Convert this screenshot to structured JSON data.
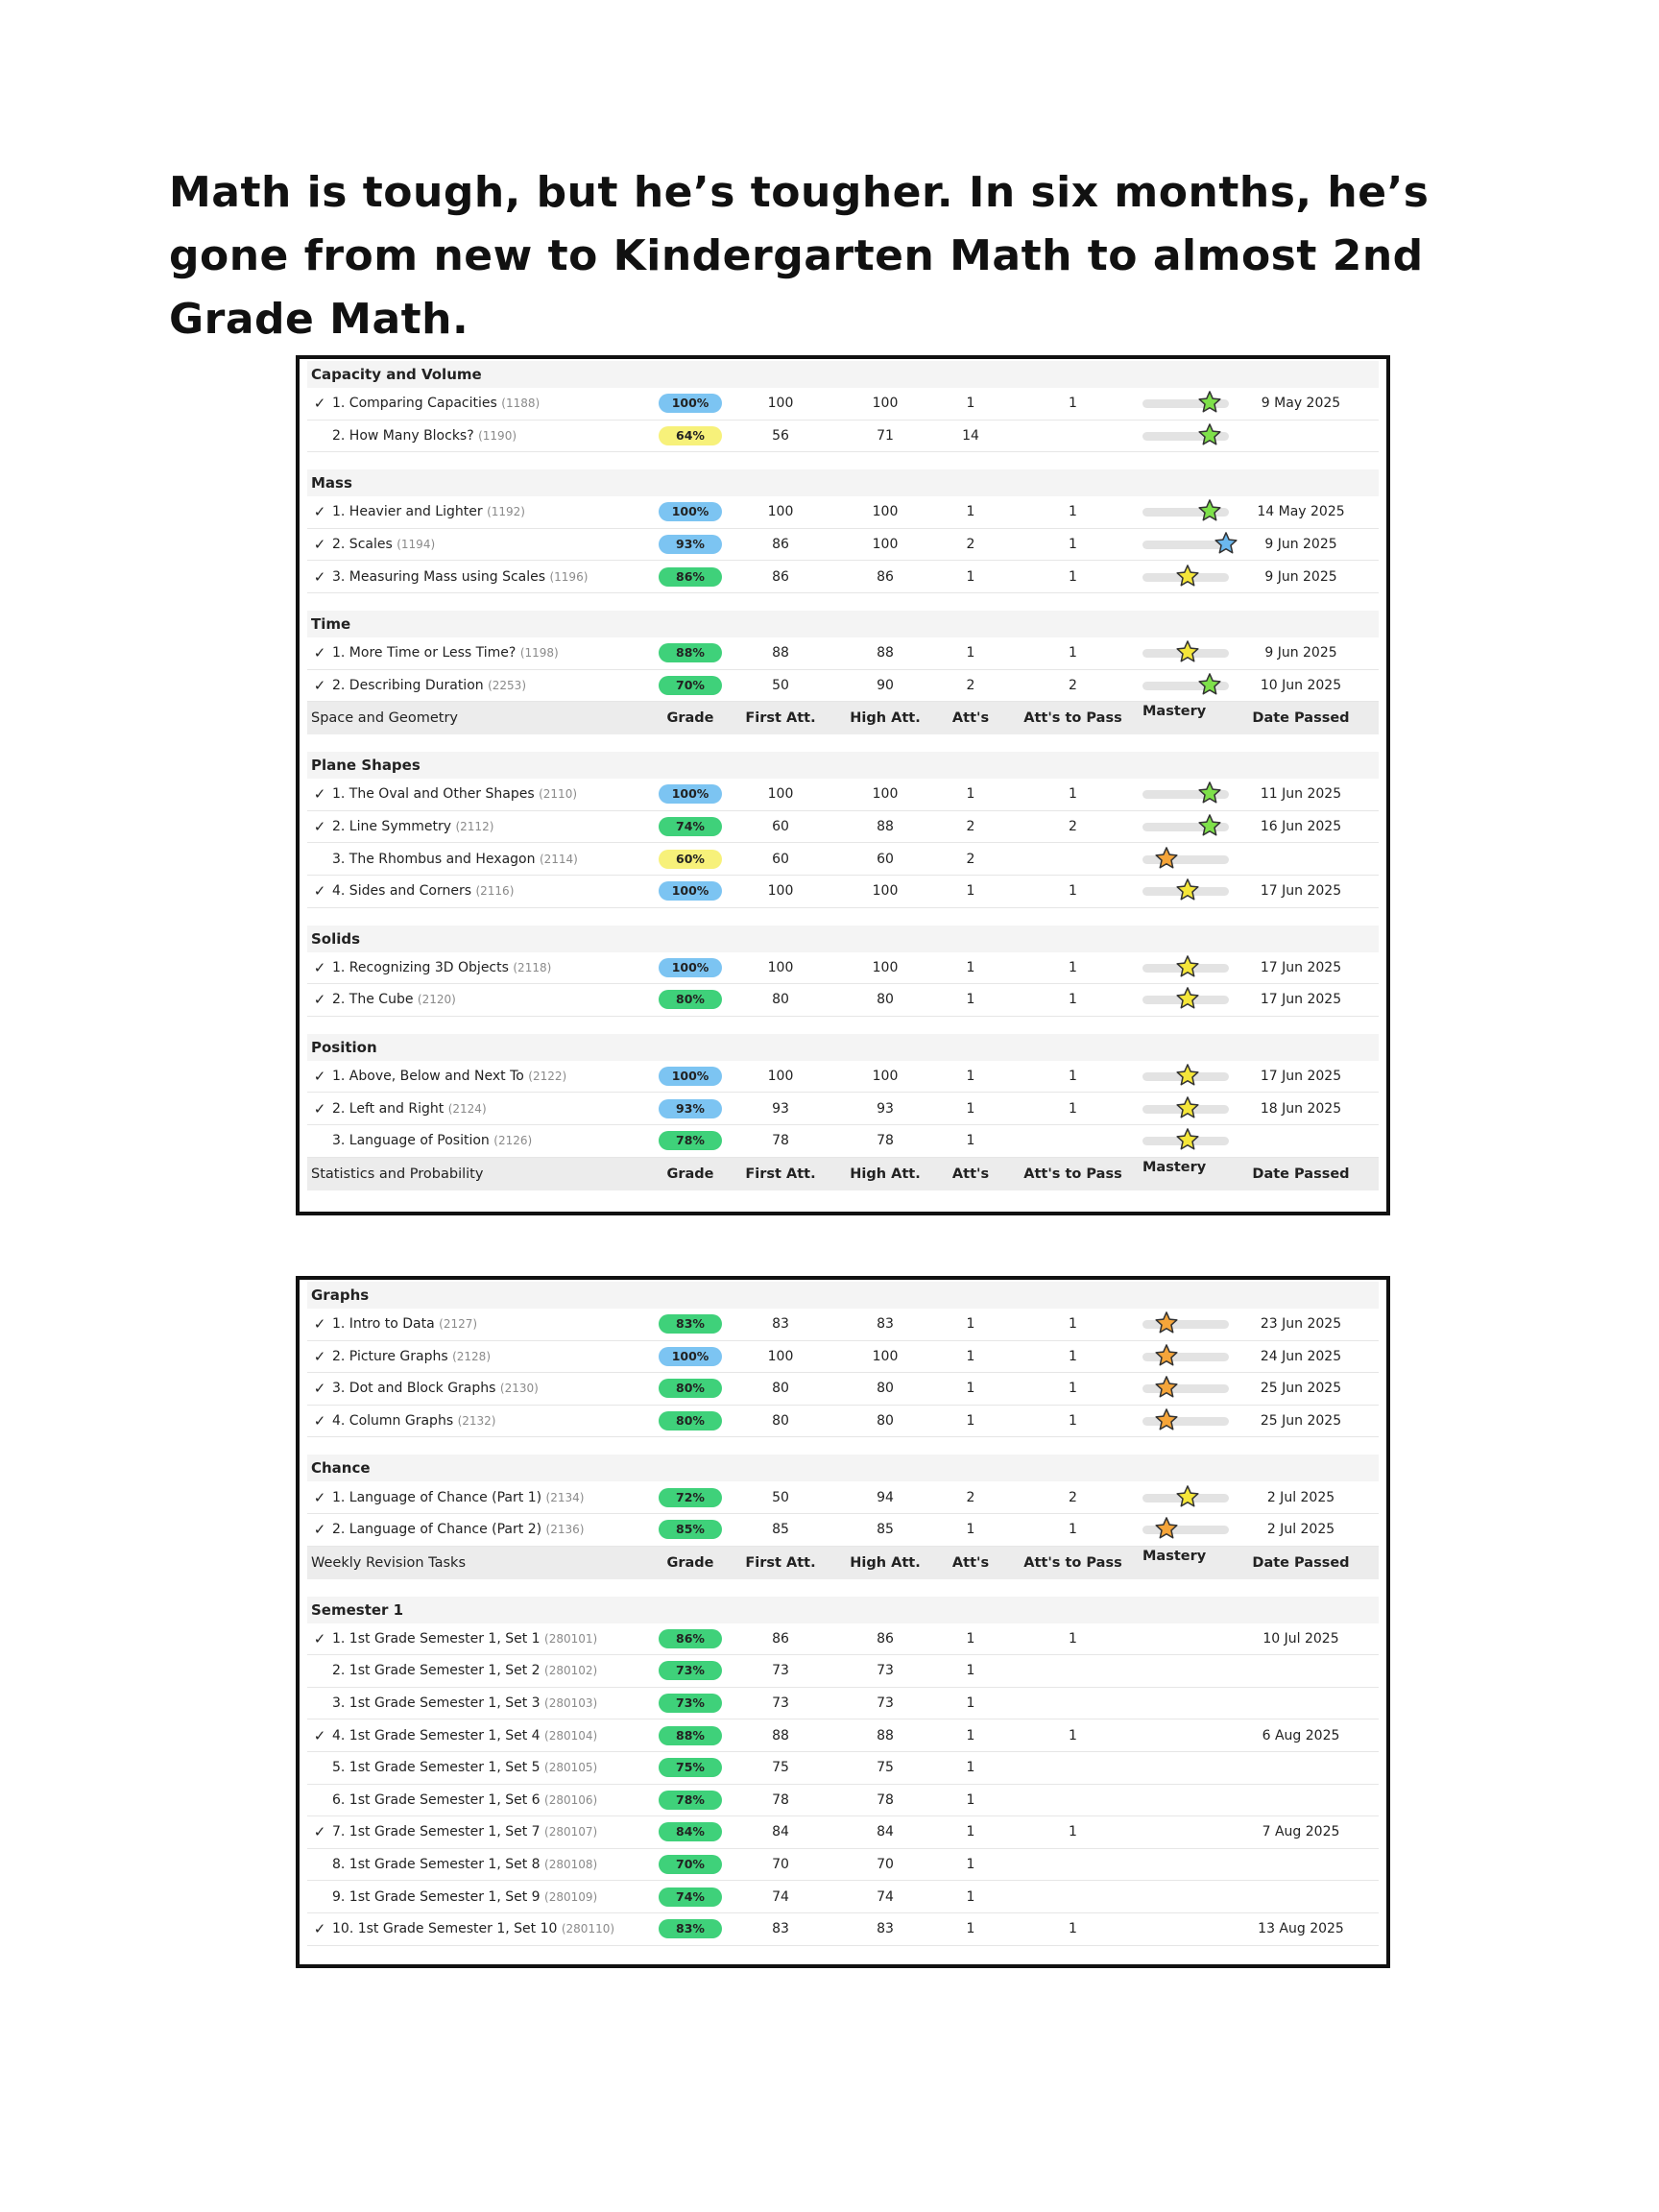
{
  "headline": "Math is tough, but he’s tougher. In six months, he’s gone from new to Kindergarten Math to almost 2nd Grade Math.",
  "colors": {
    "blue_badge": "#7cc4f2",
    "green_badge": "#3fd17a",
    "yellow_badge": "#f7f17a",
    "star_green": "#7ee04a",
    "star_blue": "#6bb8ee",
    "star_yellow": "#f5e63a",
    "star_orange": "#f5a53a"
  },
  "column_headers": {
    "grade": "Grade",
    "first": "First Att.",
    "high": "High Att.",
    "atts": "Att's",
    "pass": "Att's to Pass",
    "mastery": "Mastery",
    "date": "Date Passed"
  },
  "panel1": [
    {
      "kind": "section",
      "title": "Capacity and Volume"
    },
    {
      "kind": "row",
      "check": true,
      "name": "1. Comparing Capacities",
      "code": "(1188)",
      "grade": "100%",
      "badge": "blue",
      "first": "100",
      "high": "100",
      "atts": "1",
      "pass": "1",
      "mastery": 0.78,
      "star": "green",
      "date": "9 May 2025"
    },
    {
      "kind": "row",
      "check": false,
      "name": "2. How Many Blocks?",
      "code": "(1190)",
      "grade": "64%",
      "badge": "yellow",
      "first": "56",
      "high": "71",
      "atts": "14",
      "pass": "",
      "mastery": 0.78,
      "star": "green",
      "date": ""
    },
    {
      "kind": "gap"
    },
    {
      "kind": "section",
      "title": "Mass"
    },
    {
      "kind": "row",
      "check": true,
      "name": "1. Heavier and Lighter",
      "code": "(1192)",
      "grade": "100%",
      "badge": "blue",
      "first": "100",
      "high": "100",
      "atts": "1",
      "pass": "1",
      "mastery": 0.78,
      "star": "green",
      "date": "14 May 2025"
    },
    {
      "kind": "row",
      "check": true,
      "name": "2. Scales",
      "code": "(1194)",
      "grade": "93%",
      "badge": "blue",
      "first": "86",
      "high": "100",
      "atts": "2",
      "pass": "1",
      "mastery": 0.97,
      "star": "blue",
      "date": "9 Jun 2025"
    },
    {
      "kind": "row",
      "check": true,
      "name": "3. Measuring Mass using Scales",
      "code": "(1196)",
      "grade": "86%",
      "badge": "green",
      "first": "86",
      "high": "86",
      "atts": "1",
      "pass": "1",
      "mastery": 0.52,
      "star": "yellow",
      "date": "9 Jun 2025"
    },
    {
      "kind": "gap"
    },
    {
      "kind": "section",
      "title": "Time"
    },
    {
      "kind": "row",
      "check": true,
      "name": "1. More Time or Less Time?",
      "code": "(1198)",
      "grade": "88%",
      "badge": "green",
      "first": "88",
      "high": "88",
      "atts": "1",
      "pass": "1",
      "mastery": 0.52,
      "star": "yellow",
      "date": "9 Jun 2025"
    },
    {
      "kind": "row",
      "check": true,
      "name": "2. Describing Duration",
      "code": "(2253)",
      "grade": "70%",
      "badge": "green",
      "first": "50",
      "high": "90",
      "atts": "2",
      "pass": "2",
      "mastery": 0.78,
      "star": "green",
      "date": "10 Jun 2025"
    },
    {
      "kind": "header",
      "title": "Space and Geometry"
    },
    {
      "kind": "gap"
    },
    {
      "kind": "section",
      "title": "Plane Shapes"
    },
    {
      "kind": "row",
      "check": true,
      "name": "1. The Oval and Other Shapes",
      "code": "(2110)",
      "grade": "100%",
      "badge": "blue",
      "first": "100",
      "high": "100",
      "atts": "1",
      "pass": "1",
      "mastery": 0.78,
      "star": "green",
      "date": "11 Jun 2025"
    },
    {
      "kind": "row",
      "check": true,
      "name": "2. Line Symmetry",
      "code": "(2112)",
      "grade": "74%",
      "badge": "green",
      "first": "60",
      "high": "88",
      "atts": "2",
      "pass": "2",
      "mastery": 0.78,
      "star": "green",
      "date": "16 Jun 2025"
    },
    {
      "kind": "row",
      "check": false,
      "name": "3. The Rhombus and Hexagon",
      "code": "(2114)",
      "grade": "60%",
      "badge": "yellow",
      "first": "60",
      "high": "60",
      "atts": "2",
      "pass": "",
      "mastery": 0.28,
      "star": "orange",
      "date": ""
    },
    {
      "kind": "row",
      "check": true,
      "name": "4. Sides and Corners",
      "code": "(2116)",
      "grade": "100%",
      "badge": "blue",
      "first": "100",
      "high": "100",
      "atts": "1",
      "pass": "1",
      "mastery": 0.52,
      "star": "yellow",
      "date": "17 Jun 2025"
    },
    {
      "kind": "gap"
    },
    {
      "kind": "section",
      "title": "Solids"
    },
    {
      "kind": "row",
      "check": true,
      "name": "1. Recognizing 3D Objects",
      "code": "(2118)",
      "grade": "100%",
      "badge": "blue",
      "first": "100",
      "high": "100",
      "atts": "1",
      "pass": "1",
      "mastery": 0.52,
      "star": "yellow",
      "date": "17 Jun 2025"
    },
    {
      "kind": "row",
      "check": true,
      "name": "2. The Cube",
      "code": "(2120)",
      "grade": "80%",
      "badge": "green",
      "first": "80",
      "high": "80",
      "atts": "1",
      "pass": "1",
      "mastery": 0.52,
      "star": "yellow",
      "date": "17 Jun 2025"
    },
    {
      "kind": "gap"
    },
    {
      "kind": "section",
      "title": "Position"
    },
    {
      "kind": "row",
      "check": true,
      "name": "1. Above, Below and Next To",
      "code": "(2122)",
      "grade": "100%",
      "badge": "blue",
      "first": "100",
      "high": "100",
      "atts": "1",
      "pass": "1",
      "mastery": 0.52,
      "star": "yellow",
      "date": "17 Jun 2025"
    },
    {
      "kind": "row",
      "check": true,
      "name": "2. Left and Right",
      "code": "(2124)",
      "grade": "93%",
      "badge": "blue",
      "first": "93",
      "high": "93",
      "atts": "1",
      "pass": "1",
      "mastery": 0.52,
      "star": "yellow",
      "date": "18 Jun 2025"
    },
    {
      "kind": "row",
      "check": false,
      "name": "3. Language of Position",
      "code": "(2126)",
      "grade": "78%",
      "badge": "green",
      "first": "78",
      "high": "78",
      "atts": "1",
      "pass": "",
      "mastery": 0.52,
      "star": "yellow",
      "date": ""
    },
    {
      "kind": "header",
      "title": "Statistics and Probability"
    }
  ],
  "panel2": [
    {
      "kind": "section",
      "title": "Graphs"
    },
    {
      "kind": "row",
      "check": true,
      "name": "1. Intro to Data",
      "code": "(2127)",
      "grade": "83%",
      "badge": "green",
      "first": "83",
      "high": "83",
      "atts": "1",
      "pass": "1",
      "mastery": 0.28,
      "star": "orange",
      "date": "23 Jun 2025"
    },
    {
      "kind": "row",
      "check": true,
      "name": "2. Picture Graphs",
      "code": "(2128)",
      "grade": "100%",
      "badge": "blue",
      "first": "100",
      "high": "100",
      "atts": "1",
      "pass": "1",
      "mastery": 0.28,
      "star": "orange",
      "date": "24 Jun 2025"
    },
    {
      "kind": "row",
      "check": true,
      "name": "3. Dot and Block Graphs",
      "code": "(2130)",
      "grade": "80%",
      "badge": "green",
      "first": "80",
      "high": "80",
      "atts": "1",
      "pass": "1",
      "mastery": 0.28,
      "star": "orange",
      "date": "25 Jun 2025"
    },
    {
      "kind": "row",
      "check": true,
      "name": "4. Column Graphs",
      "code": "(2132)",
      "grade": "80%",
      "badge": "green",
      "first": "80",
      "high": "80",
      "atts": "1",
      "pass": "1",
      "mastery": 0.28,
      "star": "orange",
      "date": "25 Jun 2025"
    },
    {
      "kind": "gap"
    },
    {
      "kind": "section",
      "title": "Chance"
    },
    {
      "kind": "row",
      "check": true,
      "name": "1. Language of Chance (Part 1)",
      "code": "(2134)",
      "grade": "72%",
      "badge": "green",
      "first": "50",
      "high": "94",
      "atts": "2",
      "pass": "2",
      "mastery": 0.52,
      "star": "yellow",
      "date": "2 Jul 2025"
    },
    {
      "kind": "row",
      "check": true,
      "name": "2. Language of Chance (Part 2)",
      "code": "(2136)",
      "grade": "85%",
      "badge": "green",
      "first": "85",
      "high": "85",
      "atts": "1",
      "pass": "1",
      "mastery": 0.28,
      "star": "orange",
      "date": "2 Jul 2025"
    },
    {
      "kind": "header",
      "title": "Weekly Revision Tasks"
    },
    {
      "kind": "gap"
    },
    {
      "kind": "section",
      "title": "Semester 1"
    },
    {
      "kind": "row",
      "check": true,
      "name": "1. 1st Grade Semester 1, Set 1",
      "code": "(280101)",
      "grade": "86%",
      "badge": "green",
      "first": "86",
      "high": "86",
      "atts": "1",
      "pass": "1",
      "mastery": null,
      "star": "",
      "date": "10 Jul 2025"
    },
    {
      "kind": "row",
      "check": false,
      "name": "2. 1st Grade Semester 1, Set 2",
      "code": "(280102)",
      "grade": "73%",
      "badge": "green",
      "first": "73",
      "high": "73",
      "atts": "1",
      "pass": "",
      "mastery": null,
      "star": "",
      "date": ""
    },
    {
      "kind": "row",
      "check": false,
      "name": "3. 1st Grade Semester 1, Set 3",
      "code": "(280103)",
      "grade": "73%",
      "badge": "green",
      "first": "73",
      "high": "73",
      "atts": "1",
      "pass": "",
      "mastery": null,
      "star": "",
      "date": ""
    },
    {
      "kind": "row",
      "check": true,
      "name": "4. 1st Grade Semester 1, Set 4",
      "code": "(280104)",
      "grade": "88%",
      "badge": "green",
      "first": "88",
      "high": "88",
      "atts": "1",
      "pass": "1",
      "mastery": null,
      "star": "",
      "date": "6 Aug 2025"
    },
    {
      "kind": "row",
      "check": false,
      "name": "5. 1st Grade Semester 1, Set 5",
      "code": "(280105)",
      "grade": "75%",
      "badge": "green",
      "first": "75",
      "high": "75",
      "atts": "1",
      "pass": "",
      "mastery": null,
      "star": "",
      "date": ""
    },
    {
      "kind": "row",
      "check": false,
      "name": "6. 1st Grade Semester 1, Set 6",
      "code": "(280106)",
      "grade": "78%",
      "badge": "green",
      "first": "78",
      "high": "78",
      "atts": "1",
      "pass": "",
      "mastery": null,
      "star": "",
      "date": ""
    },
    {
      "kind": "row",
      "check": true,
      "name": "7. 1st Grade Semester 1, Set 7",
      "code": "(280107)",
      "grade": "84%",
      "badge": "green",
      "first": "84",
      "high": "84",
      "atts": "1",
      "pass": "1",
      "mastery": null,
      "star": "",
      "date": "7 Aug 2025"
    },
    {
      "kind": "row",
      "check": false,
      "name": "8. 1st Grade Semester 1, Set 8",
      "code": "(280108)",
      "grade": "70%",
      "badge": "green",
      "first": "70",
      "high": "70",
      "atts": "1",
      "pass": "",
      "mastery": null,
      "star": "",
      "date": ""
    },
    {
      "kind": "row",
      "check": false,
      "name": "9. 1st Grade Semester 1, Set 9",
      "code": "(280109)",
      "grade": "74%",
      "badge": "green",
      "first": "74",
      "high": "74",
      "atts": "1",
      "pass": "",
      "mastery": null,
      "star": "",
      "date": ""
    },
    {
      "kind": "row",
      "check": true,
      "name": "10. 1st Grade Semester 1, Set 10",
      "code": "(280110)",
      "grade": "83%",
      "badge": "green",
      "first": "83",
      "high": "83",
      "atts": "1",
      "pass": "1",
      "mastery": null,
      "star": "",
      "date": "13 Aug 2025"
    }
  ]
}
